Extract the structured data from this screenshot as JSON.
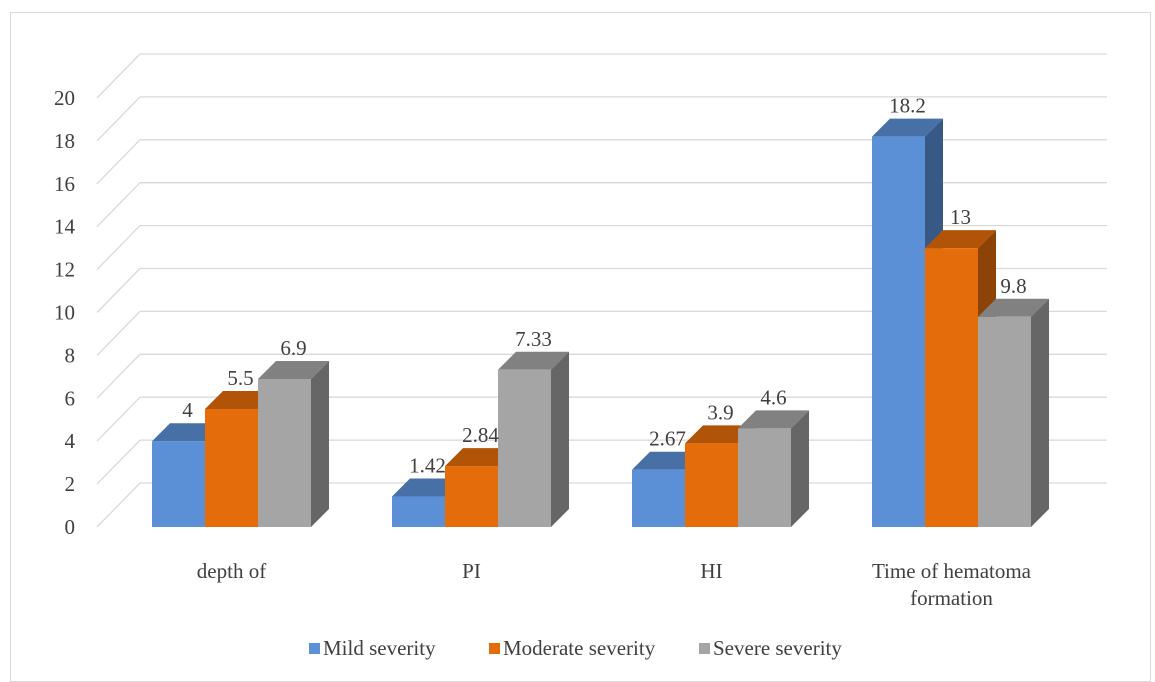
{
  "chart_data": {
    "type": "bar",
    "categories": [
      [
        "depth of"
      ],
      [
        "PI"
      ],
      [
        "HI"
      ],
      [
        "Time of hematoma",
        "formation"
      ]
    ],
    "series": [
      {
        "name": "Mild severity",
        "values": [
          4,
          1.42,
          2.67,
          18.2
        ],
        "labels": [
          "4",
          "1.42",
          "2.67",
          "18.2"
        ],
        "color": "#5b8fd6"
      },
      {
        "name": "Moderate severity",
        "values": [
          5.5,
          2.84,
          3.9,
          13
        ],
        "labels": [
          "5.5",
          "2.84",
          "3.9",
          "13"
        ],
        "color": "#e46c0a"
      },
      {
        "name": "Severe severity",
        "values": [
          6.9,
          7.33,
          4.6,
          9.8
        ],
        "labels": [
          "6.9",
          "7.33",
          "4.6",
          "9.8"
        ],
        "color": "#a5a5a5"
      }
    ],
    "y_ticks": [
      "0",
      "2",
      "4",
      "6",
      "8",
      "10",
      "12",
      "14",
      "16",
      "18",
      "20"
    ],
    "ylim": [
      0,
      20
    ],
    "grid": true,
    "legend_position": "bottom",
    "style": "3d-column"
  }
}
